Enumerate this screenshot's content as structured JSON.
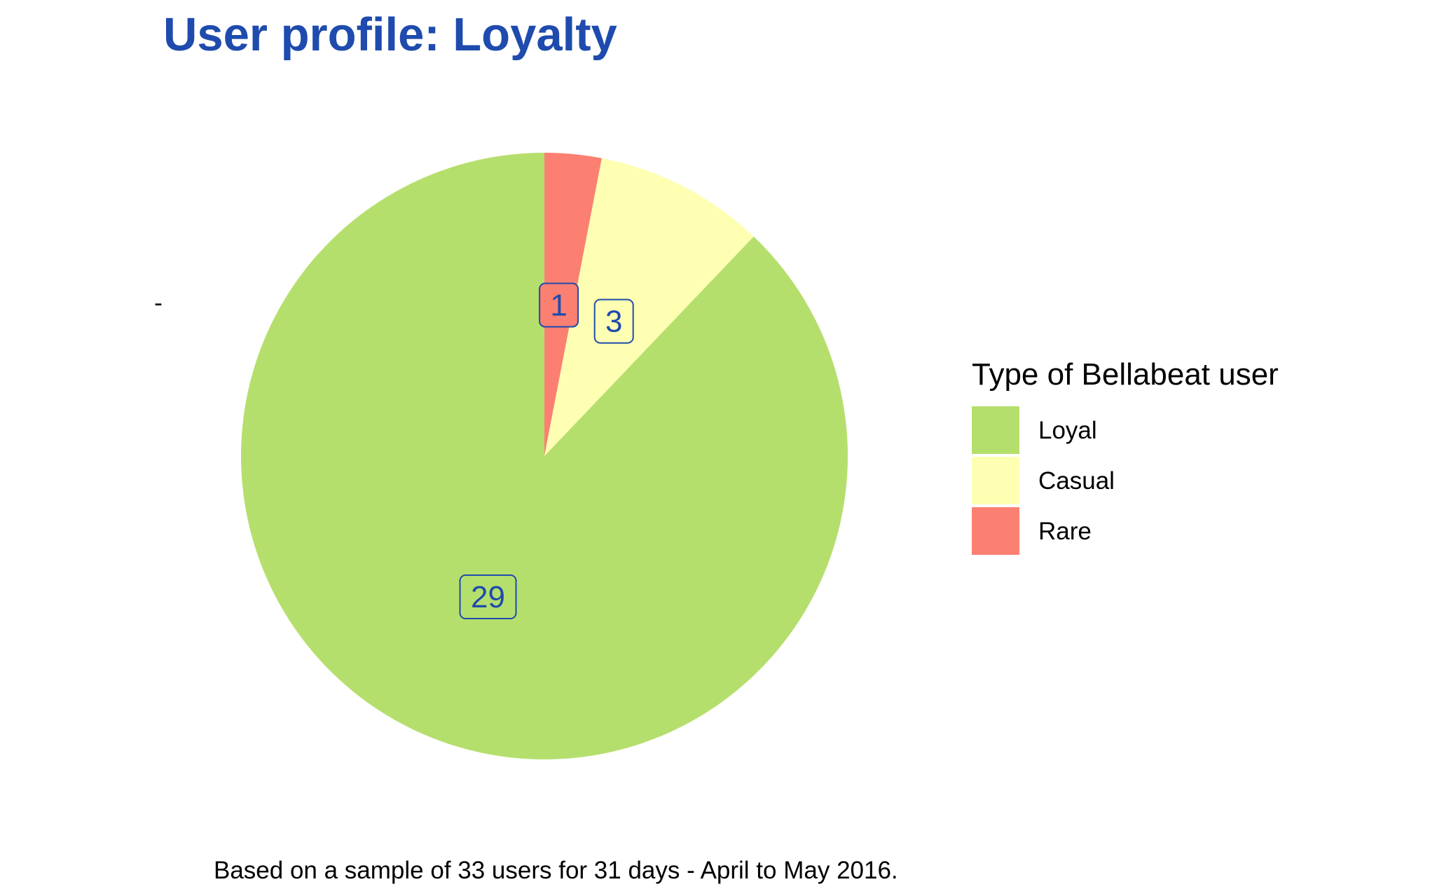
{
  "chart_data": {
    "type": "pie",
    "title": "User profile: Loyalty",
    "axis_label": "-",
    "legend_title": "Type of Bellabeat user",
    "legend_position": "right",
    "caption": "Based on a sample of 33 users for 31 days - April to May 2016.",
    "categories": [
      "Loyal",
      "Casual",
      "Rare"
    ],
    "values": [
      29,
      3,
      1
    ],
    "colors": [
      "#b5df6d",
      "#ffffb3",
      "#fb8072"
    ],
    "title_color": "#1e4bad",
    "label_color": "#1e4bad"
  }
}
